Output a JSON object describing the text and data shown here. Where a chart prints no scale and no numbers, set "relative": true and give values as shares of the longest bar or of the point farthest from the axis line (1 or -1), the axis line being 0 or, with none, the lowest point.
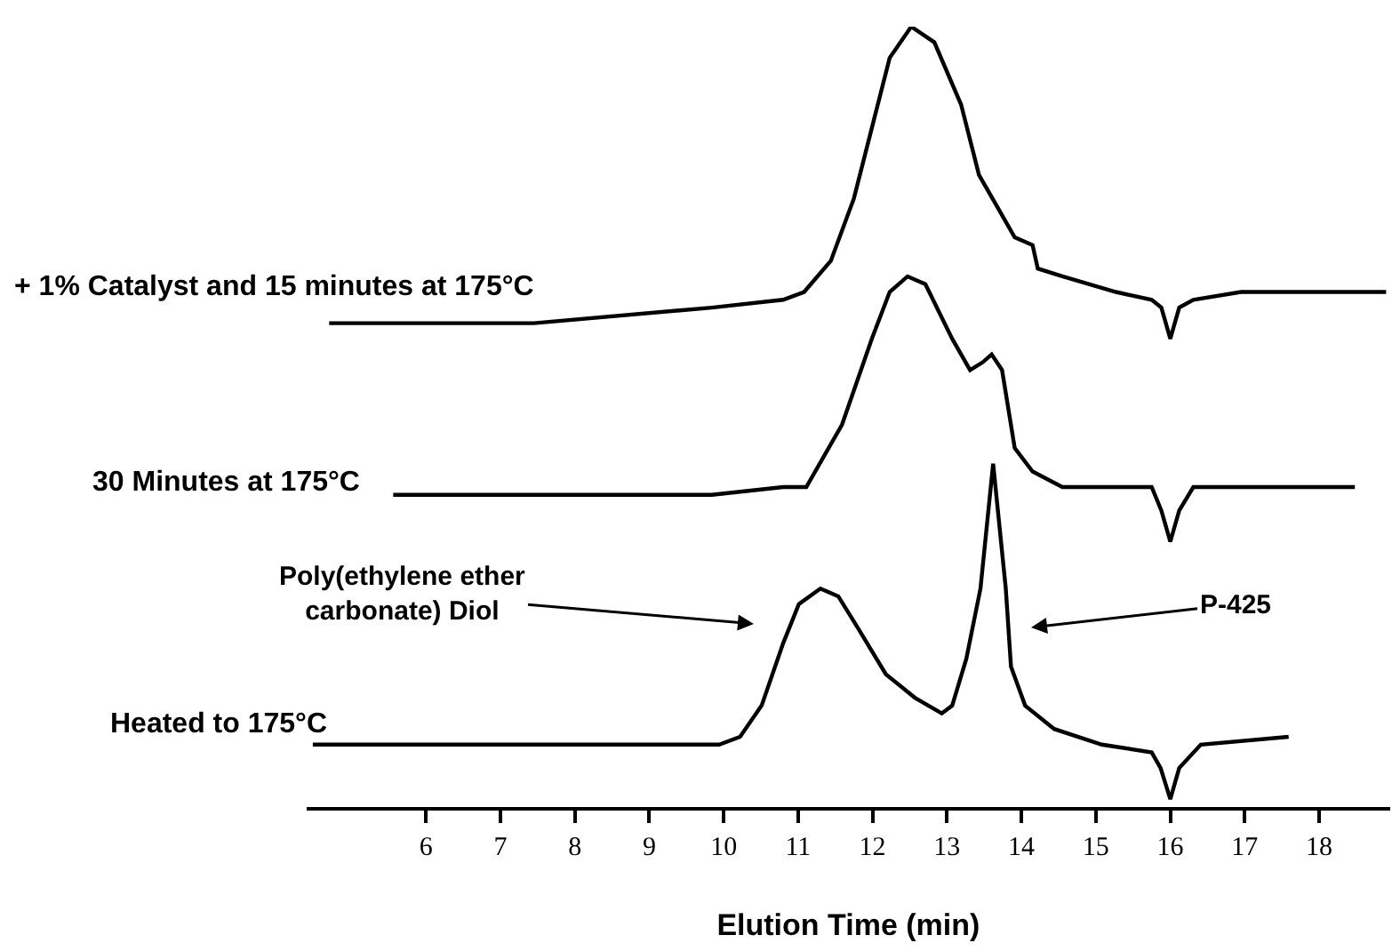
{
  "chart_data": {
    "type": "line",
    "relative": true,
    "xlim": [
      4.4,
      18.95
    ],
    "tick_labels": "x",
    "xlabel": "Elution Time (min)",
    "xticks": [
      6,
      7,
      8,
      9,
      10,
      11,
      12,
      13,
      14,
      15,
      16,
      17,
      18
    ],
    "annotations": [
      "Poly(ethylene ether\ncarbonate) Diol",
      "P-425"
    ],
    "series": [
      {
        "name": "+ 1% Catalyst and 15 minutes at 175°C",
        "color": "#000000",
        "x": [
          4.7,
          7.45,
          9.84,
          10.8,
          11.08,
          11.44,
          11.75,
          11.99,
          12.23,
          12.52,
          12.83,
          13.19,
          13.43,
          13.67,
          13.91,
          14.15,
          14.22,
          14.55,
          15.27,
          15.75,
          15.88,
          16.0,
          16.12,
          16.31,
          16.95,
          18.9
        ],
        "values": [
          0.62,
          0.62,
          0.64,
          0.65,
          0.66,
          0.7,
          0.78,
          0.87,
          0.96,
          1,
          0.98,
          0.9,
          0.81,
          0.77,
          0.73,
          0.72,
          0.69,
          0.68,
          0.66,
          0.65,
          0.64,
          0.6,
          0.64,
          0.65,
          0.66,
          0.66
        ]
      },
      {
        "name": "30 Minutes at 175°C",
        "color": "#000000",
        "x": [
          5.56,
          7.45,
          9.84,
          10.8,
          11.11,
          11.59,
          11.99,
          12.23,
          12.47,
          12.71,
          13.07,
          13.31,
          13.48,
          13.6,
          13.74,
          13.91,
          14.15,
          14.55,
          15.75,
          15.88,
          16.0,
          16.12,
          16.31,
          17.03,
          18.48
        ],
        "values": [
          0.4,
          0.4,
          0.4,
          0.41,
          0.41,
          0.49,
          0.6,
          0.66,
          0.68,
          0.67,
          0.6,
          0.56,
          0.57,
          0.58,
          0.56,
          0.46,
          0.43,
          0.41,
          0.41,
          0.38,
          0.34,
          0.38,
          0.41,
          0.41,
          0.41
        ]
      },
      {
        "name": "Heated to 175°C",
        "color": "#000000",
        "x": [
          4.48,
          9.94,
          10.22,
          10.51,
          10.8,
          11.01,
          11.3,
          11.54,
          11.8,
          12.18,
          12.57,
          12.93,
          13.07,
          13.26,
          13.45,
          13.62,
          13.79,
          13.86,
          14.05,
          14.44,
          15.08,
          15.75,
          15.87,
          16.0,
          16.12,
          16.41,
          17.59
        ],
        "values": [
          0.08,
          0.08,
          0.09,
          0.13,
          0.21,
          0.26,
          0.28,
          0.27,
          0.23,
          0.17,
          0.14,
          0.12,
          0.13,
          0.19,
          0.28,
          0.44,
          0.28,
          0.18,
          0.13,
          0.1,
          0.08,
          0.07,
          0.05,
          0.01,
          0.05,
          0.08,
          0.09
        ]
      }
    ]
  }
}
